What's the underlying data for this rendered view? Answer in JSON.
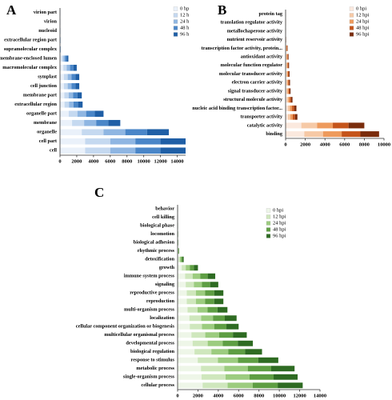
{
  "chart_data": [
    {
      "type": "bar",
      "orientation": "horizontal",
      "stacked": true,
      "panel_label": "A",
      "categories": [
        "virion part",
        "virion",
        "nucleoid",
        "extracellular region part",
        "supramolecular complex",
        "membrane-enclosed lumen",
        "macromolecular complex",
        "symplast",
        "cell junction",
        "membrane part",
        "extracellular region",
        "organelle part",
        "membrane",
        "organelle",
        "cell part",
        "cell"
      ],
      "series": [
        {
          "name": "0 hp",
          "color": "#eaf1fa",
          "values": [
            6,
            6,
            10,
            12,
            16,
            200,
            400,
            460,
            460,
            520,
            540,
            1040,
            1440,
            2600,
            3000,
            3000
          ]
        },
        {
          "name": "12 h",
          "color": "#c5d9f0",
          "values": [
            6,
            6,
            10,
            12,
            16,
            200,
            400,
            460,
            460,
            520,
            540,
            1040,
            1440,
            2600,
            3000,
            3000
          ]
        },
        {
          "name": "24 h",
          "color": "#8fb6e2",
          "values": [
            6,
            6,
            10,
            12,
            16,
            200,
            400,
            460,
            460,
            520,
            540,
            1040,
            1440,
            2600,
            3000,
            3000
          ]
        },
        {
          "name": "48 h",
          "color": "#4a86c8",
          "values": [
            6,
            6,
            10,
            12,
            16,
            200,
            400,
            460,
            460,
            520,
            540,
            1040,
            1440,
            2600,
            3000,
            3000
          ]
        },
        {
          "name": "96 h",
          "color": "#1f5fa6",
          "values": [
            6,
            6,
            10,
            12,
            16,
            200,
            400,
            460,
            460,
            520,
            540,
            1040,
            1440,
            2600,
            3000,
            3000
          ]
        }
      ],
      "xlim": [
        0,
        15000
      ],
      "xticks": [
        0,
        2000,
        4000,
        6000,
        8000,
        10000,
        12000,
        14000
      ]
    },
    {
      "type": "bar",
      "orientation": "horizontal",
      "stacked": true,
      "panel_label": "B",
      "categories": [
        "protein tag",
        "translation regulator activity",
        "metallochaperone activity",
        "nutrient reservoir activity",
        "transcription factor activity, protein...",
        "antioxidant activity",
        "molecular function regulator",
        "molecular transducer activity",
        "electron carrier activity",
        "signal transducer activity",
        "structural molecule activity",
        "nucleic acid binding transcription factor...",
        "transporter activity",
        "catalytic activity",
        "binding"
      ],
      "series": [
        {
          "name": "0 hpi",
          "color": "#fbe9de",
          "values": [
            2,
            4,
            4,
            10,
            40,
            60,
            70,
            80,
            90,
            100,
            140,
            220,
            240,
            1600,
            1900
          ]
        },
        {
          "name": "12 hpi",
          "color": "#f6c9a6",
          "values": [
            2,
            4,
            4,
            10,
            40,
            60,
            70,
            80,
            90,
            100,
            140,
            220,
            240,
            1600,
            1900
          ]
        },
        {
          "name": "24 hpi",
          "color": "#ee9a5c",
          "values": [
            2,
            4,
            4,
            10,
            40,
            60,
            70,
            80,
            90,
            100,
            140,
            220,
            240,
            1600,
            1900
          ]
        },
        {
          "name": "48 hpi",
          "color": "#c5541a",
          "values": [
            2,
            4,
            4,
            10,
            40,
            60,
            70,
            80,
            90,
            100,
            140,
            220,
            240,
            1600,
            1900
          ]
        },
        {
          "name": "96 hpi",
          "color": "#7a2c0c",
          "values": [
            2,
            4,
            4,
            10,
            40,
            60,
            70,
            80,
            90,
            100,
            140,
            220,
            240,
            1600,
            1900
          ]
        }
      ],
      "xlim": [
        0,
        10000
      ],
      "xticks": [
        0,
        2000,
        4000,
        6000,
        8000,
        10000
      ]
    },
    {
      "type": "bar",
      "orientation": "horizontal",
      "stacked": true,
      "panel_label": "C",
      "categories": [
        "behavior",
        "cell killing",
        "biological phase",
        "locomotion",
        "biological adhesion",
        "rhythmic process",
        "detoxification",
        "growth",
        "immune system process",
        "signaling",
        "reproductive process",
        "reproduction",
        "multi-organism process",
        "localization",
        "cellular component organization or biogenesis",
        "multicellular organismal process",
        "developmental process",
        "biological regulation",
        "response to stimulus",
        "metabolic process",
        "single-organism process",
        "cellular process"
      ],
      "series": [
        {
          "name": "0 hpi",
          "color": "#eef6e8",
          "values": [
            6,
            6,
            8,
            10,
            12,
            30,
            120,
            400,
            740,
            800,
            900,
            900,
            980,
            1160,
            1200,
            1360,
            1480,
            1660,
            1980,
            2300,
            2360,
            2460
          ]
        },
        {
          "name": "12 hpi",
          "color": "#cfe7bd",
          "values": [
            6,
            6,
            8,
            10,
            12,
            30,
            120,
            400,
            740,
            800,
            900,
            900,
            980,
            1160,
            1200,
            1360,
            1480,
            1660,
            1980,
            2300,
            2360,
            2460
          ]
        },
        {
          "name": "24 hpi",
          "color": "#9ccc7f",
          "values": [
            6,
            6,
            8,
            10,
            12,
            30,
            120,
            400,
            740,
            800,
            900,
            900,
            980,
            1160,
            1200,
            1360,
            1480,
            1660,
            1980,
            2300,
            2360,
            2460
          ]
        },
        {
          "name": "48 hpi",
          "color": "#5e9e43",
          "values": [
            6,
            6,
            8,
            10,
            12,
            30,
            120,
            400,
            740,
            800,
            900,
            900,
            980,
            1160,
            1200,
            1360,
            1480,
            1660,
            1980,
            2300,
            2360,
            2460
          ]
        },
        {
          "name": "96 hpi",
          "color": "#2e6b22",
          "values": [
            6,
            6,
            8,
            10,
            12,
            30,
            120,
            400,
            740,
            800,
            900,
            900,
            980,
            1160,
            1200,
            1360,
            1480,
            1660,
            1980,
            2300,
            2360,
            2460
          ]
        }
      ],
      "xlim": [
        0,
        14000
      ],
      "xticks": [
        0,
        2000,
        4000,
        6000,
        8000,
        10000,
        12000,
        14000
      ]
    }
  ]
}
